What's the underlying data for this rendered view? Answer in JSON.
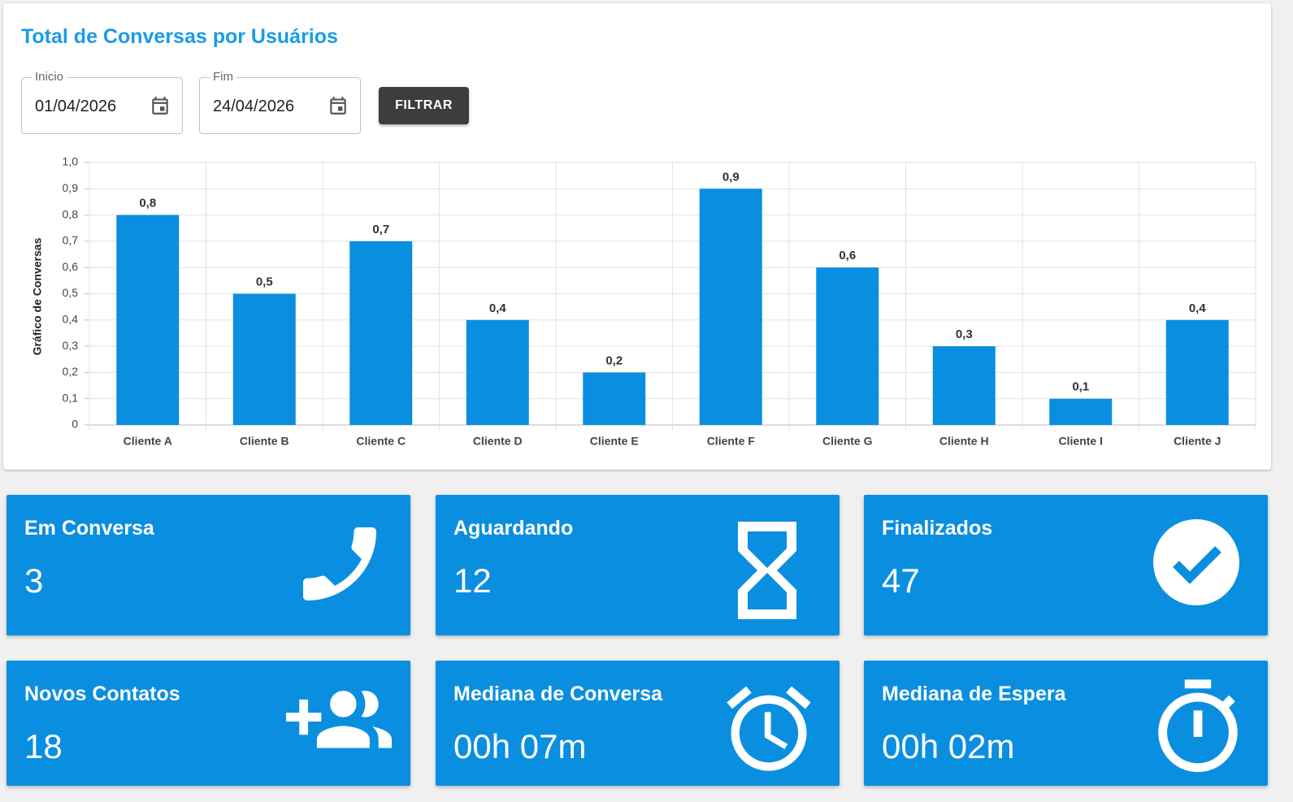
{
  "header": {
    "title": "Total de Conversas por Usuários"
  },
  "filters": {
    "start_label": "Inicio",
    "start_value": "01/04/2026",
    "end_label": "Fim",
    "end_value": "24/04/2026",
    "button": "FILTRAR"
  },
  "chart_data": {
    "type": "bar",
    "y_label": "Gráfico de Conversas",
    "categories": [
      "Cliente A",
      "Cliente B",
      "Cliente C",
      "Cliente D",
      "Cliente E",
      "Cliente F",
      "Cliente G",
      "Cliente H",
      "Cliente I",
      "Cliente J"
    ],
    "values": [
      0.8,
      0.5,
      0.7,
      0.4,
      0.2,
      0.9,
      0.6,
      0.3,
      0.1,
      0.4
    ],
    "value_labels": [
      "0,8",
      "0,5",
      "0,7",
      "0,4",
      "0,2",
      "0,9",
      "0,6",
      "0,3",
      "0,1",
      "0,4"
    ],
    "color": "#0a8fe0",
    "ylim": [
      0,
      1
    ],
    "yticks": [
      0,
      {
        "value": 0.1,
        "label": "0,1"
      },
      {
        "value": 0.2,
        "label": "0,2"
      },
      {
        "value": 0.3,
        "label": "0,3"
      },
      {
        "value": 0.4,
        "label": "0,4"
      },
      {
        "value": 0.5,
        "label": "0,5"
      },
      {
        "value": 0.6,
        "label": "0,6"
      },
      {
        "value": 0.7,
        "label": "0,7"
      },
      {
        "value": 0.8,
        "label": "0,8"
      },
      {
        "value": 0.9,
        "label": "0,9"
      },
      {
        "value": 1,
        "label": "1,0"
      }
    ],
    "grid": true
  },
  "cards": [
    {
      "title": "Em Conversa",
      "value": 3
    },
    {
      "title": "Aguardando",
      "value": 12
    },
    {
      "title": "Finalizados",
      "value": 47
    },
    {
      "title": "Novos Contatos",
      "value": 18
    },
    {
      "title": "Mediana de Conversa",
      "value": "00h 07m"
    },
    {
      "title": "Mediana de Espera",
      "value": "00h 02m"
    }
  ]
}
